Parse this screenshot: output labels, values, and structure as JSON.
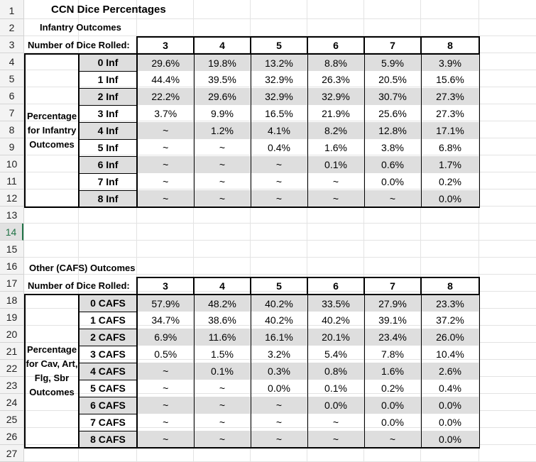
{
  "row_numbers": [
    "1",
    "2",
    "3",
    "4",
    "5",
    "6",
    "7",
    "8",
    "9",
    "10",
    "11",
    "12",
    "13",
    "14",
    "15",
    "16",
    "17",
    "18",
    "19",
    "20",
    "21",
    "22",
    "23",
    "24",
    "25",
    "26",
    "27"
  ],
  "selected_row": "14",
  "title": "CCN Dice Percentages",
  "infantry": {
    "heading": "Infantry Outcomes",
    "dice_label": "Number of Dice Rolled:",
    "dice_counts": [
      "3",
      "4",
      "5",
      "6",
      "7",
      "8"
    ],
    "section_label_lines": [
      "Percentage",
      "for Infantry",
      "Outcomes"
    ],
    "rows": [
      {
        "label": "0 Inf",
        "values": [
          "29.6%",
          "19.8%",
          "13.2%",
          "8.8%",
          "5.9%",
          "3.9%"
        ]
      },
      {
        "label": "1 Inf",
        "values": [
          "44.4%",
          "39.5%",
          "32.9%",
          "26.3%",
          "20.5%",
          "15.6%"
        ]
      },
      {
        "label": "2 Inf",
        "values": [
          "22.2%",
          "29.6%",
          "32.9%",
          "32.9%",
          "30.7%",
          "27.3%"
        ]
      },
      {
        "label": "3 Inf",
        "values": [
          "3.7%",
          "9.9%",
          "16.5%",
          "21.9%",
          "25.6%",
          "27.3%"
        ]
      },
      {
        "label": "4 Inf",
        "values": [
          "~",
          "1.2%",
          "4.1%",
          "8.2%",
          "12.8%",
          "17.1%"
        ]
      },
      {
        "label": "5 Inf",
        "values": [
          "~",
          "~",
          "0.4%",
          "1.6%",
          "3.8%",
          "6.8%"
        ]
      },
      {
        "label": "6 Inf",
        "values": [
          "~",
          "~",
          "~",
          "0.1%",
          "0.6%",
          "1.7%"
        ]
      },
      {
        "label": "7 Inf",
        "values": [
          "~",
          "~",
          "~",
          "~",
          "0.0%",
          "0.2%"
        ]
      },
      {
        "label": "8 Inf",
        "values": [
          "~",
          "~",
          "~",
          "~",
          "~",
          "0.0%"
        ]
      }
    ]
  },
  "cafs": {
    "heading": "Other (CAFS) Outcomes",
    "dice_label": "Number of Dice Rolled:",
    "dice_counts": [
      "3",
      "4",
      "5",
      "6",
      "7",
      "8"
    ],
    "section_label_lines": [
      "Percentage",
      "for Cav, Art,",
      "Flg, Sbr",
      "Outcomes"
    ],
    "rows": [
      {
        "label": "0 CAFS",
        "values": [
          "57.9%",
          "48.2%",
          "40.2%",
          "33.5%",
          "27.9%",
          "23.3%"
        ]
      },
      {
        "label": "1 CAFS",
        "values": [
          "34.7%",
          "38.6%",
          "40.2%",
          "40.2%",
          "39.1%",
          "37.2%"
        ]
      },
      {
        "label": "2 CAFS",
        "values": [
          "6.9%",
          "11.6%",
          "16.1%",
          "20.1%",
          "23.4%",
          "26.0%"
        ]
      },
      {
        "label": "3 CAFS",
        "values": [
          "0.5%",
          "1.5%",
          "3.2%",
          "5.4%",
          "7.8%",
          "10.4%"
        ]
      },
      {
        "label": "4 CAFS",
        "values": [
          "~",
          "0.1%",
          "0.3%",
          "0.8%",
          "1.6%",
          "2.6%"
        ]
      },
      {
        "label": "5 CAFS",
        "values": [
          "~",
          "~",
          "0.0%",
          "0.1%",
          "0.2%",
          "0.4%"
        ]
      },
      {
        "label": "6 CAFS",
        "values": [
          "~",
          "~",
          "~",
          "0.0%",
          "0.0%",
          "0.0%"
        ]
      },
      {
        "label": "7 CAFS",
        "values": [
          "~",
          "~",
          "~",
          "~",
          "0.0%",
          "0.0%"
        ]
      },
      {
        "label": "8 CAFS",
        "values": [
          "~",
          "~",
          "~",
          "~",
          "~",
          "0.0%"
        ]
      }
    ]
  }
}
